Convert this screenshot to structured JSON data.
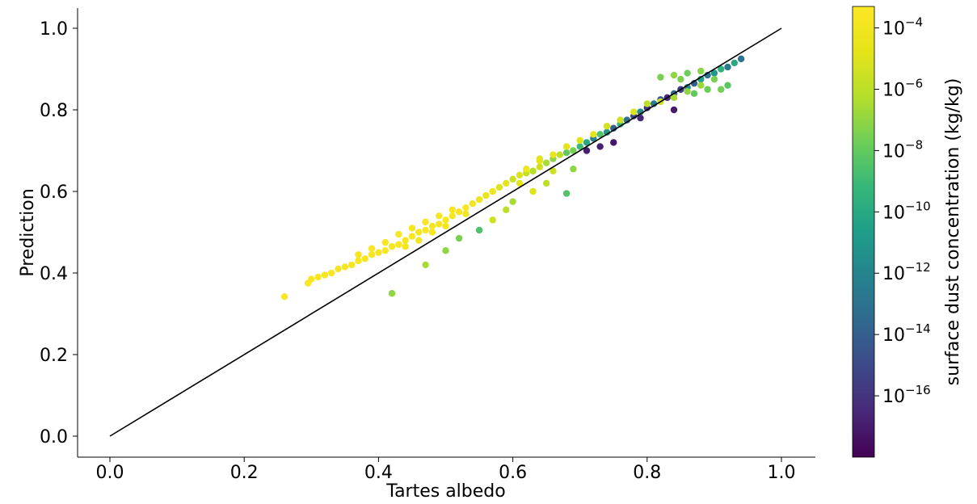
{
  "chart_data": {
    "type": "scatter",
    "title": "",
    "xlabel": "Tartes albedo",
    "ylabel": "Prediction",
    "xlim": [
      -0.05,
      1.05
    ],
    "ylim": [
      -0.05,
      1.05
    ],
    "xticks": [
      0.0,
      0.2,
      0.4,
      0.6,
      0.8,
      1.0
    ],
    "xtick_labels": [
      "0.0",
      "0.2",
      "0.4",
      "0.6",
      "0.8",
      "1.0"
    ],
    "yticks": [
      0.0,
      0.2,
      0.4,
      0.6,
      0.8,
      1.0
    ],
    "ytick_labels": [
      "0.0",
      "0.2",
      "0.4",
      "0.6",
      "0.8",
      "1.0"
    ],
    "reference_line": {
      "x": [
        0.0,
        1.0
      ],
      "y": [
        0.0,
        1.0
      ],
      "color": "#000000"
    },
    "colorbar": {
      "label": "surface dust concentration (kg/kg)",
      "scale": "log",
      "colormap": "viridis",
      "range_log10": [
        -18,
        -3.3
      ],
      "ticks_log10": [
        -4,
        -6,
        -8,
        -10,
        -12,
        -14,
        -16
      ],
      "tick_bases": [
        "10",
        "10",
        "10",
        "10",
        "10",
        "10",
        "10"
      ],
      "tick_exponents": [
        "−4",
        "−6",
        "−8",
        "−10",
        "−12",
        "−14",
        "−16"
      ]
    },
    "note_points": "Approximate representative sample read from the figure; each point: [tartes_albedo, prediction, log10(dust concentration)]",
    "points": [
      [
        0.26,
        0.342,
        -3.6
      ],
      [
        0.295,
        0.375,
        -3.6
      ],
      [
        0.3,
        0.385,
        -3.7
      ],
      [
        0.31,
        0.39,
        -3.6
      ],
      [
        0.32,
        0.395,
        -3.7
      ],
      [
        0.33,
        0.4,
        -3.6
      ],
      [
        0.34,
        0.41,
        -3.7
      ],
      [
        0.35,
        0.415,
        -3.6
      ],
      [
        0.36,
        0.42,
        -3.8
      ],
      [
        0.37,
        0.43,
        -3.6
      ],
      [
        0.38,
        0.435,
        -3.7
      ],
      [
        0.39,
        0.445,
        -3.6
      ],
      [
        0.4,
        0.45,
        -3.8
      ],
      [
        0.41,
        0.455,
        -3.6
      ],
      [
        0.42,
        0.465,
        -3.7
      ],
      [
        0.43,
        0.47,
        -3.6
      ],
      [
        0.44,
        0.48,
        -3.8
      ],
      [
        0.45,
        0.49,
        -3.6
      ],
      [
        0.46,
        0.5,
        -3.7
      ],
      [
        0.47,
        0.505,
        -3.6
      ],
      [
        0.48,
        0.515,
        -3.8
      ],
      [
        0.49,
        0.52,
        -3.7
      ],
      [
        0.5,
        0.53,
        -3.6
      ],
      [
        0.51,
        0.54,
        -3.7
      ],
      [
        0.52,
        0.55,
        -3.8
      ],
      [
        0.53,
        0.56,
        -3.6
      ],
      [
        0.54,
        0.57,
        -3.9
      ],
      [
        0.41,
        0.475,
        -3.7
      ],
      [
        0.43,
        0.495,
        -3.6
      ],
      [
        0.45,
        0.51,
        -3.7
      ],
      [
        0.47,
        0.525,
        -3.6
      ],
      [
        0.49,
        0.54,
        -3.7
      ],
      [
        0.51,
        0.555,
        -3.6
      ],
      [
        0.39,
        0.46,
        -3.6
      ],
      [
        0.37,
        0.445,
        -3.7
      ],
      [
        0.44,
        0.465,
        -4.0
      ],
      [
        0.46,
        0.48,
        -3.9
      ],
      [
        0.48,
        0.5,
        -3.8
      ],
      [
        0.5,
        0.515,
        -3.9
      ],
      [
        0.53,
        0.545,
        -4.0
      ],
      [
        0.55,
        0.58,
        -4.2
      ],
      [
        0.56,
        0.59,
        -4.5
      ],
      [
        0.57,
        0.6,
        -4.3
      ],
      [
        0.58,
        0.61,
        -5.0
      ],
      [
        0.59,
        0.62,
        -4.8
      ],
      [
        0.6,
        0.63,
        -5.5
      ],
      [
        0.61,
        0.64,
        -5.0
      ],
      [
        0.62,
        0.645,
        -5.8
      ],
      [
        0.63,
        0.65,
        -6.2
      ],
      [
        0.64,
        0.66,
        -5.5
      ],
      [
        0.65,
        0.67,
        -6.5
      ],
      [
        0.66,
        0.68,
        -7.0
      ],
      [
        0.67,
        0.69,
        -6.0
      ],
      [
        0.68,
        0.695,
        -8.0
      ],
      [
        0.69,
        0.7,
        -7.5
      ],
      [
        0.7,
        0.71,
        -9.0
      ],
      [
        0.71,
        0.72,
        -10.0
      ],
      [
        0.72,
        0.73,
        -12.0
      ],
      [
        0.73,
        0.74,
        -8.5
      ],
      [
        0.74,
        0.745,
        -11.0
      ],
      [
        0.75,
        0.755,
        -14.0
      ],
      [
        0.76,
        0.765,
        -9.5
      ],
      [
        0.77,
        0.775,
        -13.0
      ],
      [
        0.78,
        0.785,
        -15.0
      ],
      [
        0.79,
        0.795,
        -11.5
      ],
      [
        0.8,
        0.805,
        -16.0
      ],
      [
        0.81,
        0.815,
        -12.5
      ],
      [
        0.82,
        0.825,
        -14.5
      ],
      [
        0.83,
        0.83,
        -16.5
      ],
      [
        0.84,
        0.84,
        -13.5
      ],
      [
        0.85,
        0.85,
        -15.5
      ],
      [
        0.86,
        0.855,
        -12.0
      ],
      [
        0.87,
        0.865,
        -14.0
      ],
      [
        0.88,
        0.875,
        -10.5
      ],
      [
        0.89,
        0.885,
        -13.0
      ],
      [
        0.9,
        0.89,
        -11.0
      ],
      [
        0.91,
        0.9,
        -9.5
      ],
      [
        0.92,
        0.905,
        -12.5
      ],
      [
        0.93,
        0.915,
        -10.0
      ],
      [
        0.94,
        0.925,
        -13.0
      ],
      [
        0.71,
        0.7,
        -17.0
      ],
      [
        0.73,
        0.71,
        -16.8
      ],
      [
        0.75,
        0.72,
        -17.2
      ],
      [
        0.84,
        0.8,
        -17.0
      ],
      [
        0.79,
        0.78,
        -16.5
      ],
      [
        0.62,
        0.655,
        -4.3
      ],
      [
        0.64,
        0.675,
        -4.6
      ],
      [
        0.66,
        0.69,
        -4.4
      ],
      [
        0.68,
        0.71,
        -4.8
      ],
      [
        0.7,
        0.725,
        -5.0
      ],
      [
        0.72,
        0.74,
        -4.7
      ],
      [
        0.74,
        0.76,
        -5.2
      ],
      [
        0.76,
        0.775,
        -5.5
      ],
      [
        0.78,
        0.795,
        -5.0
      ],
      [
        0.8,
        0.815,
        -6.0
      ],
      [
        0.82,
        0.82,
        -5.5
      ],
      [
        0.84,
        0.83,
        -6.5
      ],
      [
        0.86,
        0.845,
        -7.0
      ],
      [
        0.88,
        0.86,
        -6.8
      ],
      [
        0.9,
        0.875,
        -7.5
      ],
      [
        0.82,
        0.88,
        -7.5
      ],
      [
        0.84,
        0.885,
        -7.0
      ],
      [
        0.86,
        0.89,
        -7.8
      ],
      [
        0.88,
        0.895,
        -7.2
      ],
      [
        0.85,
        0.875,
        -7.4
      ],
      [
        0.91,
        0.85,
        -7.6
      ],
      [
        0.89,
        0.85,
        -7.8
      ],
      [
        0.87,
        0.84,
        -8.0
      ],
      [
        0.92,
        0.86,
        -8.2
      ],
      [
        0.61,
        0.62,
        -4.6
      ],
      [
        0.63,
        0.6,
        -5.0
      ],
      [
        0.66,
        0.65,
        -5.5
      ],
      [
        0.65,
        0.62,
        -6.0
      ],
      [
        0.69,
        0.655,
        -7.0
      ],
      [
        0.6,
        0.575,
        -6.5
      ],
      [
        0.59,
        0.555,
        -6.0
      ],
      [
        0.57,
        0.53,
        -5.5
      ],
      [
        0.55,
        0.505,
        -8.5
      ],
      [
        0.52,
        0.485,
        -7.5
      ],
      [
        0.5,
        0.455,
        -7.0
      ],
      [
        0.47,
        0.42,
        -6.5
      ],
      [
        0.42,
        0.35,
        -7.0
      ],
      [
        0.68,
        0.595,
        -8.5
      ],
      [
        0.64,
        0.68,
        -4.9
      ]
    ]
  }
}
